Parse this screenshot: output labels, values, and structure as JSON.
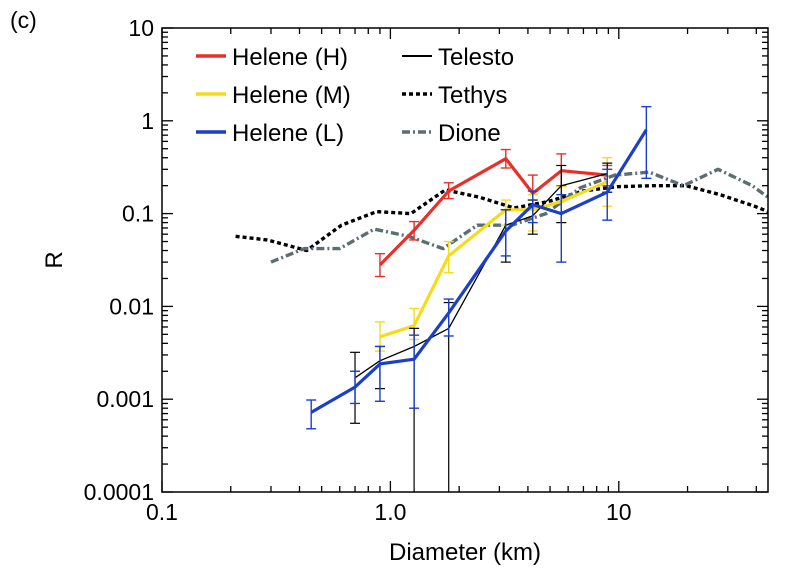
{
  "panel_label": "(c)",
  "chart_data": {
    "type": "line",
    "xlabel": "Diameter (km)",
    "ylabel": "R",
    "xscale": "log",
    "yscale": "log",
    "xlim": [
      0.1,
      45
    ],
    "ylim": [
      0.0001,
      10
    ],
    "x_ticks": [
      0.1,
      1,
      10
    ],
    "x_tick_labels": [
      "0.1",
      "1.0",
      "10"
    ],
    "y_ticks": [
      0.0001,
      0.001,
      0.01,
      0.1,
      1,
      10
    ],
    "y_tick_labels": [
      "0.0001",
      "0.001",
      "0.01",
      "0.1",
      "1",
      "10"
    ],
    "legend_position": "top-left",
    "series": [
      {
        "name": "Helene (H)",
        "color": "#e8302a",
        "style": "solid",
        "width": 3.2,
        "x": [
          0.9,
          1.27,
          1.8,
          3.2,
          4.2,
          5.6,
          8.9
        ],
        "y": [
          0.028,
          0.066,
          0.175,
          0.39,
          0.165,
          0.29,
          0.26
        ],
        "err_low": [
          0.021,
          0.052,
          0.145,
          0.31,
          0.115,
          0.2,
          0.2
        ],
        "err_high": [
          0.037,
          0.082,
          0.215,
          0.49,
          0.26,
          0.44,
          0.33
        ]
      },
      {
        "name": "Helene (M)",
        "color": "#f5dc1a",
        "style": "solid",
        "width": 3.2,
        "x": [
          0.9,
          1.27,
          1.8,
          3.2,
          4.2,
          5.6,
          8.9
        ],
        "y": [
          0.0047,
          0.0062,
          0.035,
          0.11,
          0.11,
          0.135,
          0.22
        ],
        "err_low": [
          0.0033,
          0.0044,
          0.023,
          0.075,
          0.065,
          0.08,
          0.12
        ],
        "err_high": [
          0.0068,
          0.0095,
          0.05,
          0.14,
          0.16,
          0.195,
          0.4
        ]
      },
      {
        "name": "Helene (L)",
        "color": "#1b3fc8",
        "style": "solid",
        "width": 3.2,
        "x": [
          0.45,
          0.7,
          0.9,
          1.27,
          1.8,
          3.2,
          4.2,
          5.6,
          8.9,
          13.2
        ],
        "y": [
          0.00072,
          0.00135,
          0.0024,
          0.0027,
          0.0085,
          0.065,
          0.125,
          0.1,
          0.17,
          0.8
        ],
        "err_low": [
          0.00048,
          0.0009,
          0.00095,
          0.0008,
          0.0048,
          0.035,
          0.08,
          0.03,
          0.085,
          0.24
        ],
        "err_high": [
          0.00098,
          0.002,
          0.0037,
          0.0049,
          0.012,
          0.11,
          0.175,
          0.16,
          0.3,
          1.42
        ]
      },
      {
        "name": "Telesto",
        "color": "#000000",
        "style": "solid",
        "width": 1.3,
        "x": [
          0.7,
          0.9,
          1.27,
          1.8,
          3.2,
          4.2,
          5.6,
          8.9
        ],
        "y": [
          0.0017,
          0.0026,
          0.0037,
          0.0058,
          0.075,
          0.095,
          0.2,
          0.27
        ],
        "err_low": [
          0.00055,
          0.0013,
          0.0001,
          0.0001,
          0.03,
          0.06,
          0.08,
          0.17
        ],
        "err_high": [
          0.0032,
          0.0037,
          0.0058,
          0.011,
          0.11,
          0.14,
          0.33,
          0.35
        ]
      },
      {
        "name": "Tethys",
        "color": "#000000",
        "style": "dotted",
        "width": 3.4,
        "x": [
          0.21,
          0.29,
          0.43,
          0.61,
          0.87,
          1.23,
          1.74,
          2.46,
          3.48,
          4.92,
          6.96,
          9.84,
          13.9,
          19.7,
          27.8,
          39.4,
          45
        ],
        "y": [
          0.057,
          0.052,
          0.04,
          0.075,
          0.105,
          0.1,
          0.18,
          0.15,
          0.115,
          0.135,
          0.175,
          0.195,
          0.2,
          0.2,
          0.16,
          0.12,
          0.105
        ]
      },
      {
        "name": "Dione",
        "color": "#5d6e70",
        "style": "dashdot",
        "width": 3.4,
        "x": [
          0.3,
          0.42,
          0.6,
          0.85,
          1.2,
          1.7,
          2.4,
          3.4,
          4.8,
          6.8,
          9.6,
          13.6,
          19.2,
          27.2,
          38.4,
          45
        ],
        "y": [
          0.03,
          0.042,
          0.042,
          0.068,
          0.057,
          0.042,
          0.075,
          0.075,
          0.1,
          0.19,
          0.26,
          0.28,
          0.2,
          0.3,
          0.2,
          0.15
        ]
      }
    ]
  }
}
